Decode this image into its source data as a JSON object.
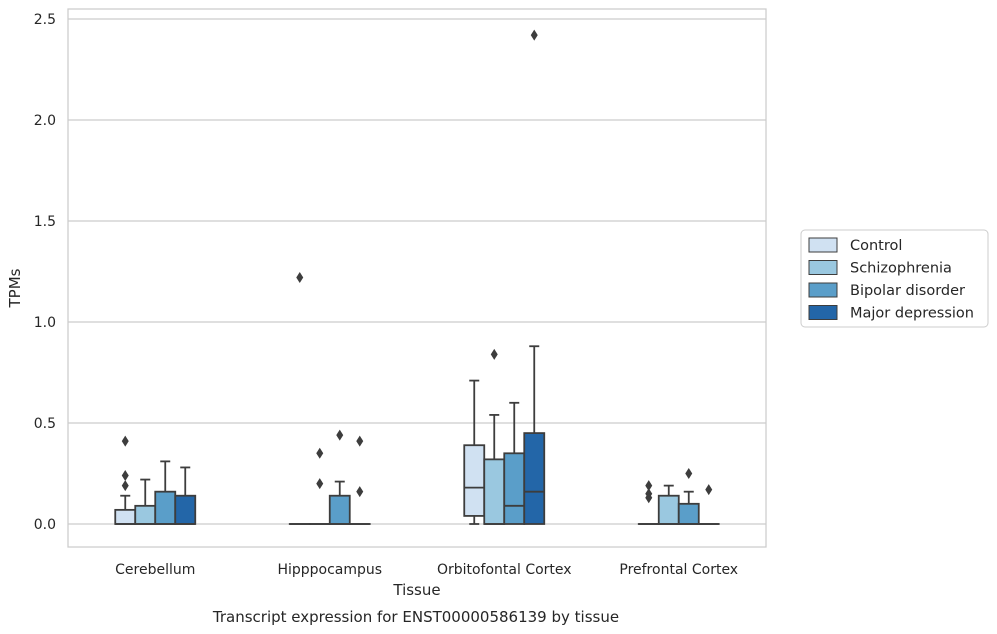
{
  "chart_data": {
    "type": "box",
    "title": "",
    "caption": "Transcript expression for ENST00000586139 by tissue",
    "xlabel": "Tissue",
    "ylabel": "TPMs",
    "ylim": [
      -0.12,
      2.55
    ],
    "yticks": [
      "0.0",
      "0.5",
      "1.0",
      "1.5",
      "2.0",
      "2.5"
    ],
    "grid": "horizontal",
    "legend_position": "right",
    "categories": [
      "Cerebellum",
      "Hipppocampus",
      "Orbitofontal Cortex",
      "Prefrontal Cortex"
    ],
    "series": [
      {
        "name": "Control",
        "color": "#d0e1f2",
        "boxes": [
          {
            "min": 0,
            "q1": 0,
            "median": 0,
            "q3": 0.07,
            "max": 0.14,
            "outliers": [
              0.19,
              0.24,
              0.41
            ]
          },
          {
            "min": 0,
            "q1": 0,
            "median": 0,
            "q3": 0,
            "max": 0,
            "outliers": [
              1.22
            ]
          },
          {
            "min": 0,
            "q1": 0.04,
            "median": 0.18,
            "q3": 0.39,
            "max": 0.71,
            "outliers": []
          },
          {
            "min": 0,
            "q1": 0,
            "median": 0,
            "q3": 0,
            "max": 0,
            "outliers": [
              0.13,
              0.15,
              0.19
            ]
          }
        ]
      },
      {
        "name": "Schizophrenia",
        "color": "#9ac8e0",
        "boxes": [
          {
            "min": 0,
            "q1": 0,
            "median": 0,
            "q3": 0.09,
            "max": 0.22,
            "outliers": []
          },
          {
            "min": 0,
            "q1": 0,
            "median": 0,
            "q3": 0,
            "max": 0,
            "outliers": [
              0.2,
              0.35
            ]
          },
          {
            "min": 0,
            "q1": 0,
            "median": 0,
            "q3": 0.32,
            "max": 0.54,
            "outliers": [
              0.84
            ]
          },
          {
            "min": 0,
            "q1": 0,
            "median": 0,
            "q3": 0.14,
            "max": 0.19,
            "outliers": []
          }
        ]
      },
      {
        "name": "Bipolar disorder",
        "color": "#5a9ec9",
        "boxes": [
          {
            "min": 0,
            "q1": 0,
            "median": 0,
            "q3": 0.16,
            "max": 0.31,
            "outliers": []
          },
          {
            "min": 0,
            "q1": 0,
            "median": 0,
            "q3": 0.14,
            "max": 0.21,
            "outliers": [
              0.44
            ]
          },
          {
            "min": 0,
            "q1": 0,
            "median": 0.09,
            "q3": 0.35,
            "max": 0.6,
            "outliers": []
          },
          {
            "min": 0,
            "q1": 0,
            "median": 0,
            "q3": 0.1,
            "max": 0.16,
            "outliers": [
              0.25
            ]
          }
        ]
      },
      {
        "name": "Major depression",
        "color": "#2366a8",
        "boxes": [
          {
            "min": 0,
            "q1": 0,
            "median": 0,
            "q3": 0.14,
            "max": 0.28,
            "outliers": []
          },
          {
            "min": 0,
            "q1": 0,
            "median": 0,
            "q3": 0,
            "max": 0,
            "outliers": [
              0.16,
              0.41
            ]
          },
          {
            "min": 0,
            "q1": 0,
            "median": 0.16,
            "q3": 0.45,
            "max": 0.88,
            "outliers": [
              2.42
            ]
          },
          {
            "min": 0,
            "q1": 0,
            "median": 0,
            "q3": 0,
            "max": 0,
            "outliers": [
              0.17
            ]
          }
        ]
      }
    ]
  }
}
